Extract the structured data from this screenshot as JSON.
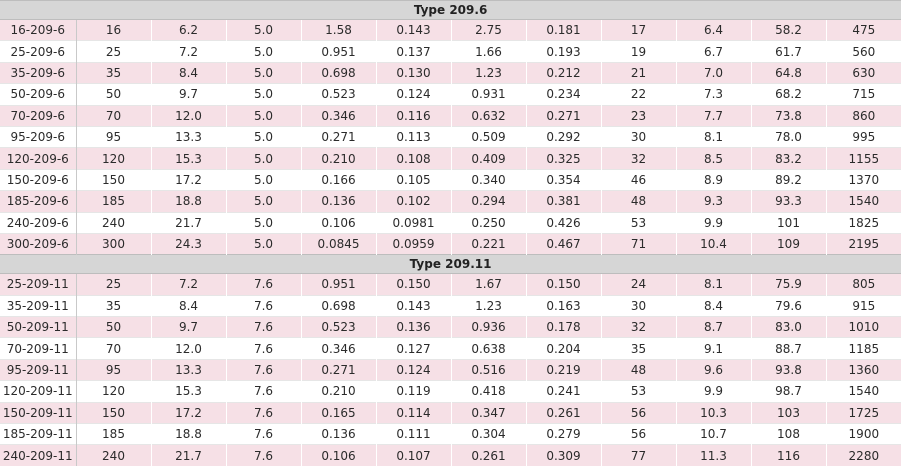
{
  "sections": [
    {
      "title": "Type 209.6",
      "rows": [
        [
          "16-209-6",
          "16",
          "6.2",
          "5.0",
          "1.58",
          "0.143",
          "2.75",
          "0.181",
          "17",
          "6.4",
          "58.2",
          "475"
        ],
        [
          "25-209-6",
          "25",
          "7.2",
          "5.0",
          "0.951",
          "0.137",
          "1.66",
          "0.193",
          "19",
          "6.7",
          "61.7",
          "560"
        ],
        [
          "35-209-6",
          "35",
          "8.4",
          "5.0",
          "0.698",
          "0.130",
          "1.23",
          "0.212",
          "21",
          "7.0",
          "64.8",
          "630"
        ],
        [
          "50-209-6",
          "50",
          "9.7",
          "5.0",
          "0.523",
          "0.124",
          "0.931",
          "0.234",
          "22",
          "7.3",
          "68.2",
          "715"
        ],
        [
          "70-209-6",
          "70",
          "12.0",
          "5.0",
          "0.346",
          "0.116",
          "0.632",
          "0.271",
          "23",
          "7.7",
          "73.8",
          "860"
        ],
        [
          "95-209-6",
          "95",
          "13.3",
          "5.0",
          "0.271",
          "0.113",
          "0.509",
          "0.292",
          "30",
          "8.1",
          "78.0",
          "995"
        ],
        [
          "120-209-6",
          "120",
          "15.3",
          "5.0",
          "0.210",
          "0.108",
          "0.409",
          "0.325",
          "32",
          "8.5",
          "83.2",
          "1155"
        ],
        [
          "150-209-6",
          "150",
          "17.2",
          "5.0",
          "0.166",
          "0.105",
          "0.340",
          "0.354",
          "46",
          "8.9",
          "89.2",
          "1370"
        ],
        [
          "185-209-6",
          "185",
          "18.8",
          "5.0",
          "0.136",
          "0.102",
          "0.294",
          "0.381",
          "48",
          "9.3",
          "93.3",
          "1540"
        ],
        [
          "240-209-6",
          "240",
          "21.7",
          "5.0",
          "0.106",
          "0.0981",
          "0.250",
          "0.426",
          "53",
          "9.9",
          "101",
          "1825"
        ],
        [
          "300-209-6",
          "300",
          "24.3",
          "5.0",
          "0.0845",
          "0.0959",
          "0.221",
          "0.467",
          "71",
          "10.4",
          "109",
          "2195"
        ]
      ]
    },
    {
      "title": "Type 209.11",
      "rows": [
        [
          "25-209-11",
          "25",
          "7.2",
          "7.6",
          "0.951",
          "0.150",
          "1.67",
          "0.150",
          "24",
          "8.1",
          "75.9",
          "805"
        ],
        [
          "35-209-11",
          "35",
          "8.4",
          "7.6",
          "0.698",
          "0.143",
          "1.23",
          "0.163",
          "30",
          "8.4",
          "79.6",
          "915"
        ],
        [
          "50-209-11",
          "50",
          "9.7",
          "7.6",
          "0.523",
          "0.136",
          "0.936",
          "0.178",
          "32",
          "8.7",
          "83.0",
          "1010"
        ],
        [
          "70-209-11",
          "70",
          "12.0",
          "7.6",
          "0.346",
          "0.127",
          "0.638",
          "0.204",
          "35",
          "9.1",
          "88.7",
          "1185"
        ],
        [
          "95-209-11",
          "95",
          "13.3",
          "7.6",
          "0.271",
          "0.124",
          "0.516",
          "0.219",
          "48",
          "9.6",
          "93.8",
          "1360"
        ],
        [
          "120-209-11",
          "120",
          "15.3",
          "7.6",
          "0.210",
          "0.119",
          "0.418",
          "0.241",
          "53",
          "9.9",
          "98.7",
          "1540"
        ],
        [
          "150-209-11",
          "150",
          "17.2",
          "7.6",
          "0.165",
          "0.114",
          "0.347",
          "0.261",
          "56",
          "10.3",
          "103",
          "1725"
        ],
        [
          "185-209-11",
          "185",
          "18.8",
          "7.6",
          "0.136",
          "0.111",
          "0.304",
          "0.279",
          "56",
          "10.7",
          "108",
          "1900"
        ],
        [
          "240-209-11",
          "240",
          "21.7",
          "7.6",
          "0.106",
          "0.107",
          "0.261",
          "0.309",
          "77",
          "11.3",
          "116",
          "2280"
        ]
      ]
    }
  ],
  "colors": {
    "header_bg": "#d6d6d6",
    "row_pink": "#f6e0e6",
    "row_white": "#ffffff"
  }
}
